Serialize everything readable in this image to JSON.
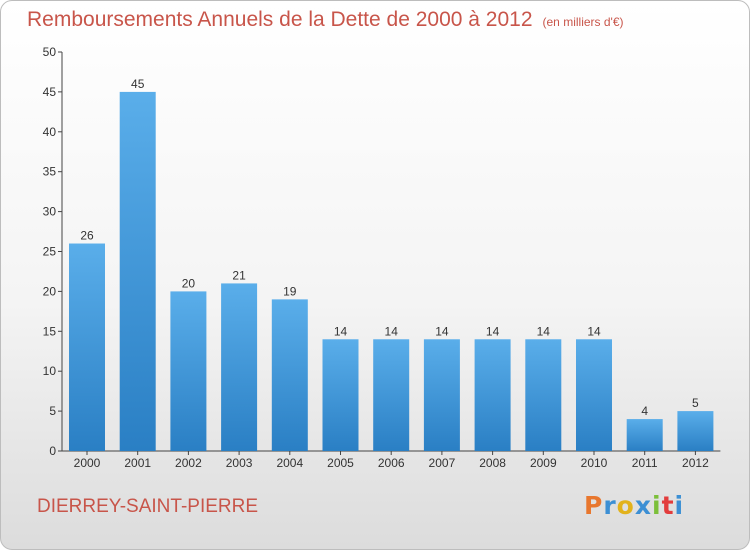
{
  "header": {
    "title": "Remboursements Annuels de la Dette de 2000 à 2012",
    "unit": "(en milliers d'€)"
  },
  "footer": {
    "commune": "DIERREY-SAINT-PIERRE",
    "brand": "Proxiti",
    "brand_colors": [
      "#e8772e",
      "#3c8fd4",
      "#e2b21c",
      "#3c8fd4",
      "#7cbf3a",
      "#e23c3c",
      "#3c8fd4"
    ]
  },
  "colors": {
    "bar_light": "#5aaeea",
    "bar_dark": "#2a7fc4",
    "title": "#c8554a",
    "grid": "#cccccc"
  },
  "chart_data": {
    "type": "bar",
    "title": "Remboursements Annuels de la Dette de 2000 à 2012",
    "subtitle": "(en milliers d'€)",
    "categories": [
      "2000",
      "2001",
      "2002",
      "2003",
      "2004",
      "2005",
      "2006",
      "2007",
      "2008",
      "2009",
      "2010",
      "2011",
      "2012"
    ],
    "values": [
      26,
      45,
      20,
      21,
      19,
      14,
      14,
      14,
      14,
      14,
      14,
      4,
      5
    ],
    "ylim": [
      0,
      50
    ],
    "yticks": [
      0,
      5,
      10,
      15,
      20,
      25,
      30,
      35,
      40,
      45,
      50
    ],
    "grid": false,
    "data_labels": true
  }
}
